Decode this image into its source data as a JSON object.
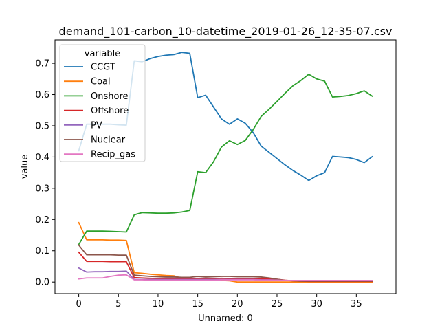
{
  "chart_data": {
    "type": "line",
    "title": "demand_101-carbon_10-datetime_2019-01-26_12-35-07.csv",
    "xlabel": "Unnamed: 0",
    "ylabel": "value",
    "xlim": [
      -3,
      40
    ],
    "ylim": [
      -0.037,
      0.775
    ],
    "xticks": [
      0,
      5,
      10,
      15,
      20,
      25,
      30,
      35
    ],
    "yticks": [
      0.0,
      0.1,
      0.2,
      0.3,
      0.4,
      0.5,
      0.6,
      0.7
    ],
    "ytick_labels": [
      "0.0",
      "0.1",
      "0.2",
      "0.3",
      "0.4",
      "0.5",
      "0.6",
      "0.7"
    ],
    "grid": false,
    "legend_title": "variable",
    "legend_position": "upper-left",
    "x": [
      0,
      1,
      2,
      3,
      4,
      5,
      6,
      7,
      8,
      9,
      10,
      11,
      12,
      13,
      14,
      15,
      16,
      17,
      18,
      19,
      20,
      21,
      22,
      23,
      24,
      25,
      26,
      27,
      28,
      29,
      30,
      31,
      32,
      33,
      34,
      35,
      36,
      37
    ],
    "series": [
      {
        "name": "CCGT",
        "color": "#1f77b4",
        "values": [
          0.42,
          0.505,
          0.505,
          0.505,
          0.505,
          0.503,
          0.502,
          0.708,
          0.705,
          0.715,
          0.722,
          0.726,
          0.728,
          0.735,
          0.732,
          0.59,
          0.598,
          0.56,
          0.522,
          0.505,
          0.522,
          0.508,
          0.478,
          0.435,
          0.415,
          0.395,
          0.375,
          0.357,
          0.342,
          0.325,
          0.34,
          0.35,
          0.402,
          0.4,
          0.398,
          0.392,
          0.382,
          0.401
        ]
      },
      {
        "name": "Coal",
        "color": "#ff7f0e",
        "values": [
          0.19,
          0.135,
          0.135,
          0.135,
          0.134,
          0.134,
          0.133,
          0.03,
          0.028,
          0.025,
          0.023,
          0.021,
          0.02,
          0.012,
          0.012,
          0.01,
          0.008,
          0.006,
          0.005,
          0.004,
          0.0,
          0.0,
          0.0,
          0.0,
          0.0,
          0.0,
          0.0,
          0.0,
          0.0,
          0.0,
          0.0,
          0.0,
          0.0,
          0.0,
          0.0,
          0.0,
          0.0,
          0.0
        ]
      },
      {
        "name": "Onshore",
        "color": "#2ca02c",
        "values": [
          0.12,
          0.163,
          0.163,
          0.163,
          0.162,
          0.161,
          0.16,
          0.215,
          0.222,
          0.221,
          0.22,
          0.22,
          0.221,
          0.224,
          0.229,
          0.353,
          0.35,
          0.385,
          0.432,
          0.452,
          0.44,
          0.453,
          0.488,
          0.53,
          0.553,
          0.578,
          0.604,
          0.628,
          0.645,
          0.665,
          0.65,
          0.643,
          0.592,
          0.594,
          0.597,
          0.603,
          0.612,
          0.595
        ]
      },
      {
        "name": "Offshore",
        "color": "#d62728",
        "values": [
          0.095,
          0.066,
          0.066,
          0.066,
          0.065,
          0.065,
          0.065,
          0.014,
          0.013,
          0.012,
          0.011,
          0.01,
          0.01,
          0.01,
          0.01,
          0.012,
          0.011,
          0.011,
          0.012,
          0.011,
          0.01,
          0.01,
          0.01,
          0.01,
          0.01,
          0.009,
          0.006,
          0.004,
          0.003,
          0.002,
          0.002,
          0.002,
          0.002,
          0.002,
          0.002,
          0.002,
          0.002,
          0.002
        ]
      },
      {
        "name": "PV",
        "color": "#9467bd",
        "values": [
          0.045,
          0.032,
          0.033,
          0.033,
          0.034,
          0.034,
          0.035,
          0.008,
          0.008,
          0.008,
          0.008,
          0.008,
          0.008,
          0.008,
          0.008,
          0.008,
          0.008,
          0.008,
          0.008,
          0.008,
          0.008,
          0.008,
          0.008,
          0.007,
          0.007,
          0.006,
          0.005,
          0.005,
          0.004,
          0.004,
          0.004,
          0.004,
          0.004,
          0.004,
          0.004,
          0.004,
          0.004,
          0.004
        ]
      },
      {
        "name": "Nuclear",
        "color": "#8c564b",
        "values": [
          0.118,
          0.087,
          0.087,
          0.087,
          0.087,
          0.086,
          0.086,
          0.022,
          0.02,
          0.018,
          0.017,
          0.016,
          0.016,
          0.015,
          0.015,
          0.018,
          0.016,
          0.017,
          0.018,
          0.018,
          0.017,
          0.017,
          0.017,
          0.016,
          0.013,
          0.009,
          0.005,
          0.004,
          0.003,
          0.003,
          0.003,
          0.003,
          0.003,
          0.003,
          0.003,
          0.003,
          0.003,
          0.003
        ]
      },
      {
        "name": "Recip_gas",
        "color": "#e377c2",
        "values": [
          0.01,
          0.013,
          0.013,
          0.013,
          0.018,
          0.022,
          0.023,
          0.007,
          0.007,
          0.006,
          0.006,
          0.006,
          0.006,
          0.006,
          0.006,
          0.006,
          0.006,
          0.006,
          0.007,
          0.007,
          0.007,
          0.007,
          0.007,
          0.006,
          0.006,
          0.006,
          0.005,
          0.005,
          0.005,
          0.005,
          0.005,
          0.005,
          0.005,
          0.005,
          0.005,
          0.005,
          0.005,
          0.005
        ]
      }
    ]
  }
}
